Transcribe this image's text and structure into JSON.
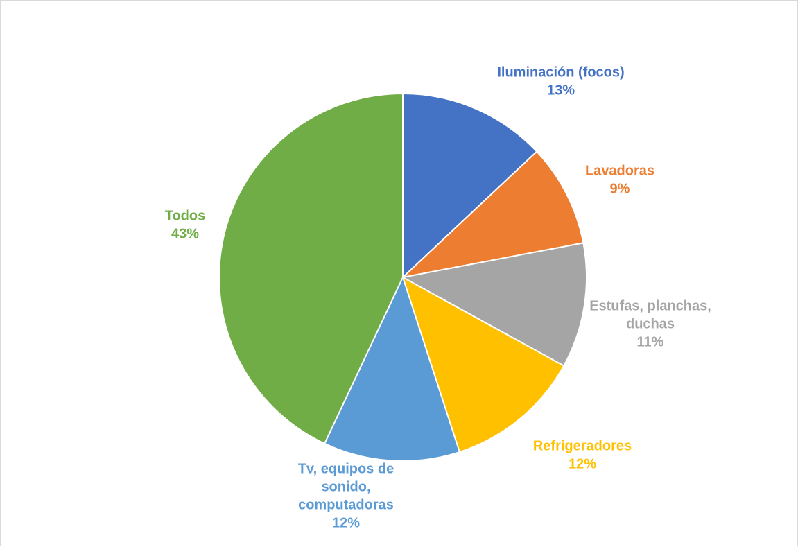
{
  "chart_data": {
    "type": "pie",
    "title": "",
    "slices": [
      {
        "label_lines": [
          "Iluminación (focos)"
        ],
        "value": 13,
        "value_label": "13%",
        "color": "#4472C4"
      },
      {
        "label_lines": [
          "Lavadoras"
        ],
        "value": 9,
        "value_label": "9%",
        "color": "#ED7D31"
      },
      {
        "label_lines": [
          "Estufas, planchas,",
          "duchas"
        ],
        "value": 11,
        "value_label": "11%",
        "color": "#A5A5A5"
      },
      {
        "label_lines": [
          "Refrigeradores"
        ],
        "value": 12,
        "value_label": "12%",
        "color": "#FFC000"
      },
      {
        "label_lines": [
          "Tv, equipos de",
          "sonido,",
          "computadoras"
        ],
        "value": 12,
        "value_label": "12%",
        "color": "#5B9BD5"
      },
      {
        "label_lines": [
          "Todos"
        ],
        "value": 43,
        "value_label": "43%",
        "color": "#70AD47"
      }
    ],
    "start_angle": "12 o'clock",
    "direction": "clockwise",
    "legend": "none",
    "data_labels": "outside"
  }
}
